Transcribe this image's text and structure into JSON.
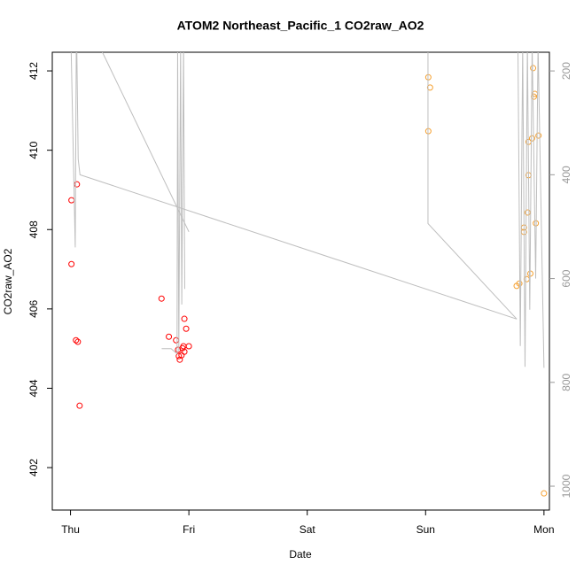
{
  "chart_data": {
    "type": "scatter",
    "title": "ATOM2 Northeast_Pacific_1 CO2raw_AO2",
    "xlabel": "Date",
    "ylabel": "CO2raw_AO2",
    "xlim": [
      -0.154,
      4.046
    ],
    "xticks": [
      {
        "value": 0,
        "label": "Thu"
      },
      {
        "value": 1,
        "label": "Fri"
      },
      {
        "value": 2,
        "label": "Sat"
      },
      {
        "value": 3,
        "label": "Sun"
      },
      {
        "value": 4,
        "label": "Mon"
      }
    ],
    "ylim": [
      400.93,
      412.47
    ],
    "yticks": [
      402,
      404,
      406,
      408,
      410,
      412
    ],
    "y2lim": [
      1046,
      164
    ],
    "y2ticks": [
      200,
      400,
      600,
      800,
      1000
    ],
    "series": [
      {
        "color": "#ff0000",
        "x": [
          0.008,
          0.008,
          0.054,
          0.046,
          0.062,
          0.077,
          0.769,
          0.831,
          0.892,
          0.908,
          0.915,
          0.923,
          0.938,
          0.946,
          0.954,
          0.962,
          0.962,
          0.977,
          1.0
        ],
        "values": [
          408.74,
          407.13,
          409.14,
          405.21,
          405.17,
          403.56,
          406.26,
          405.3,
          405.21,
          404.97,
          404.81,
          404.72,
          404.83,
          405.01,
          405.06,
          404.92,
          405.75,
          405.5,
          405.06
        ]
      },
      {
        "color": "#f5a030",
        "x": [
          3.023,
          3.038,
          3.023,
          3.769,
          3.792,
          3.831,
          3.831,
          3.854,
          3.862,
          3.869,
          3.869,
          3.885,
          3.9,
          3.908,
          3.915,
          3.923,
          3.931,
          3.954,
          4.0
        ],
        "values": [
          411.84,
          411.58,
          410.48,
          406.58,
          406.64,
          408.05,
          407.94,
          406.75,
          408.43,
          409.37,
          410.21,
          406.89,
          410.3,
          412.07,
          411.35,
          411.42,
          408.16,
          410.37,
          401.35
        ]
      },
      {
        "type": "line",
        "axis": "y2",
        "color": "#bebebe",
        "x": [
          0.0,
          0.04,
          0.05,
          0.065,
          0.08,
          3.77,
          null,
          0.24,
          1.0,
          null,
          0.77,
          0.85,
          0.9,
          0.905,
          0.915,
          0.93,
          0.94,
          0.955,
          0.965,
          null,
          3.02,
          3.02,
          3.77,
          null,
          3.78,
          3.8,
          3.82,
          3.84,
          3.86,
          3.88,
          3.9,
          3.93,
          3.95,
          4.0
        ],
        "values": [
          100,
          540,
          100,
          370,
          400,
          678,
          null,
          150,
          510,
          null,
          735,
          735,
          745,
          150,
          740,
          150,
          650,
          150,
          620,
          null,
          150,
          494,
          678,
          null,
          150,
          730,
          150,
          770,
          150,
          660,
          150,
          600,
          150,
          772
        ]
      }
    ]
  }
}
